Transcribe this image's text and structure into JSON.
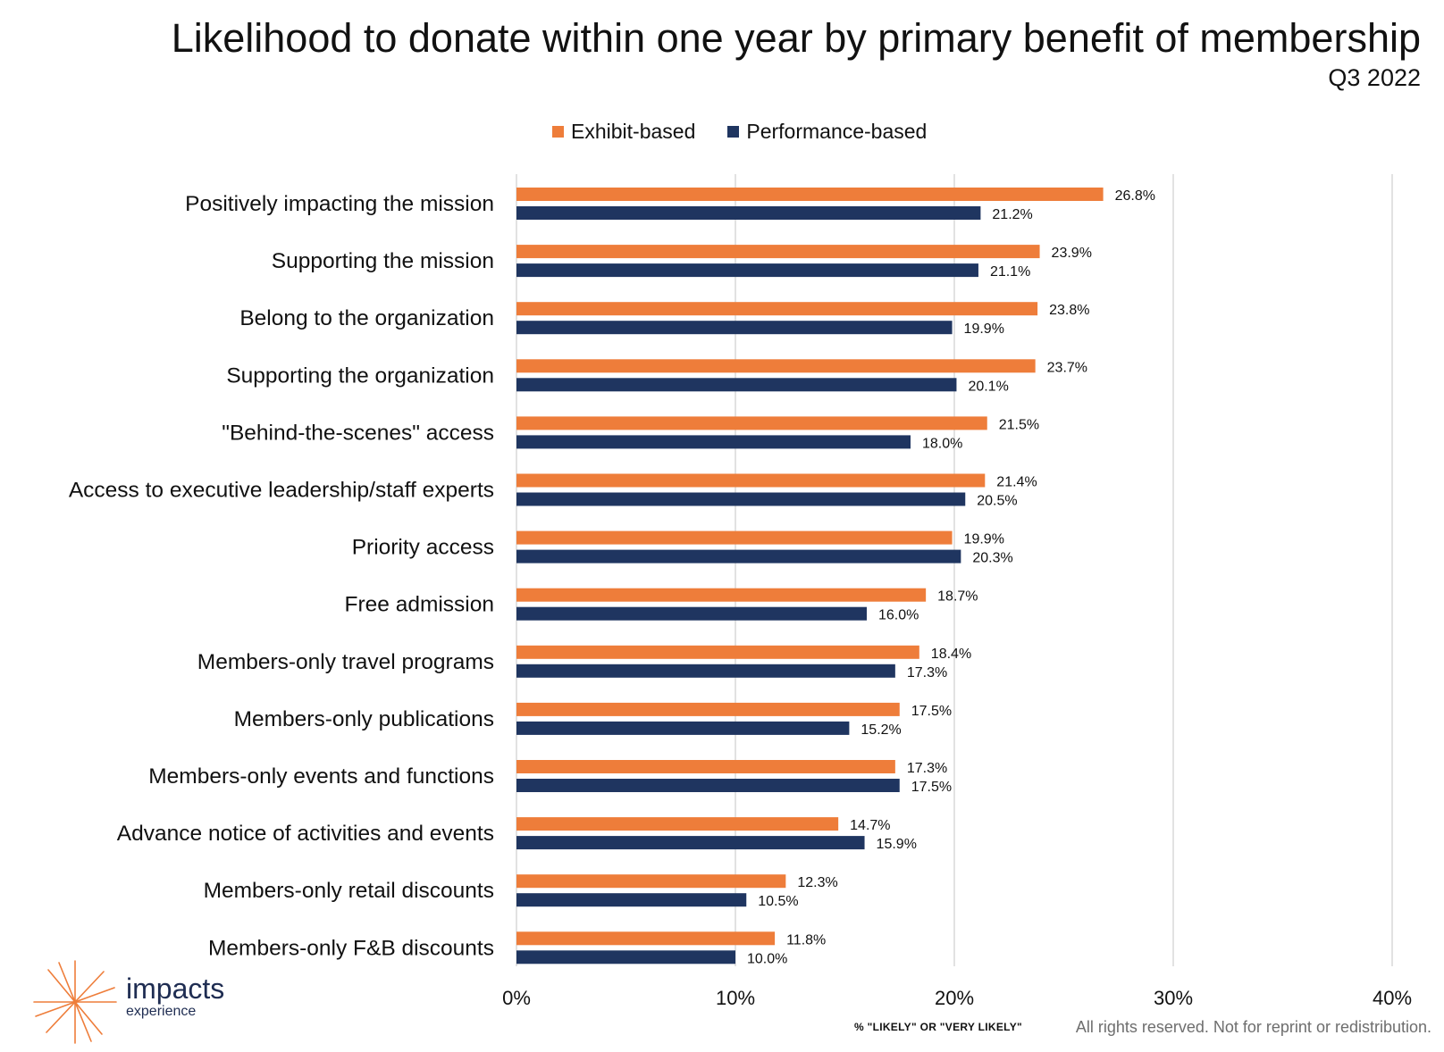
{
  "title": "Likelihood to donate within one year by primary benefit of membership",
  "subtitle": "Q3 2022",
  "colors": {
    "exhibit": "#EE7D3A",
    "performance": "#1F3560",
    "gridline": "#D9D9D9"
  },
  "chart_data": {
    "type": "bar",
    "orientation": "horizontal",
    "categories": [
      "Positively impacting the mission",
      "Supporting the mission",
      "Belong to the organization",
      "Supporting the organization",
      "\"Behind-the-scenes\" access",
      "Access to executive leadership/staff experts",
      "Priority access",
      "Free admission",
      "Members-only travel programs",
      "Members-only publications",
      "Members-only events and functions",
      "Advance notice of activities and events",
      "Members-only retail discounts",
      "Members-only F&B discounts"
    ],
    "series": [
      {
        "name": "Exhibit-based",
        "color": "#EE7D3A",
        "values": [
          26.8,
          23.9,
          23.8,
          23.7,
          21.5,
          21.4,
          19.9,
          18.7,
          18.4,
          17.5,
          17.3,
          14.7,
          12.3,
          11.8
        ],
        "labels": [
          "26.8%",
          "23.9%",
          "23.8%",
          "23.7%",
          "21.5%",
          "21.4%",
          "19.9%",
          "18.7%",
          "18.4%",
          "17.5%",
          "17.3%",
          "14.7%",
          "12.3%",
          "11.8%"
        ]
      },
      {
        "name": "Performance-based",
        "color": "#1F3560",
        "values": [
          21.2,
          21.1,
          19.9,
          20.1,
          18.0,
          20.5,
          20.3,
          16.0,
          17.3,
          15.2,
          17.5,
          15.9,
          10.5,
          10.0
        ],
        "labels": [
          "21.2%",
          "21.1%",
          "19.9%",
          "20.1%",
          "18.0%",
          "20.5%",
          "20.3%",
          "16.0%",
          "17.3%",
          "15.2%",
          "17.5%",
          "15.9%",
          "10.5%",
          "10.0%"
        ]
      }
    ],
    "xlim": [
      0,
      40
    ],
    "xticks": [
      0,
      10,
      20,
      30,
      40
    ],
    "xtick_labels": [
      "0%",
      "10%",
      "20%",
      "30%",
      "40%"
    ],
    "xlabel": "% \"LIKELY\" OR \"VERY LIKELY\"",
    "grid": true,
    "legend": "top-center"
  },
  "footer": "All rights reserved. Not for reprint or redistribution.",
  "logo": {
    "name": "impacts",
    "tagline": "experience"
  }
}
